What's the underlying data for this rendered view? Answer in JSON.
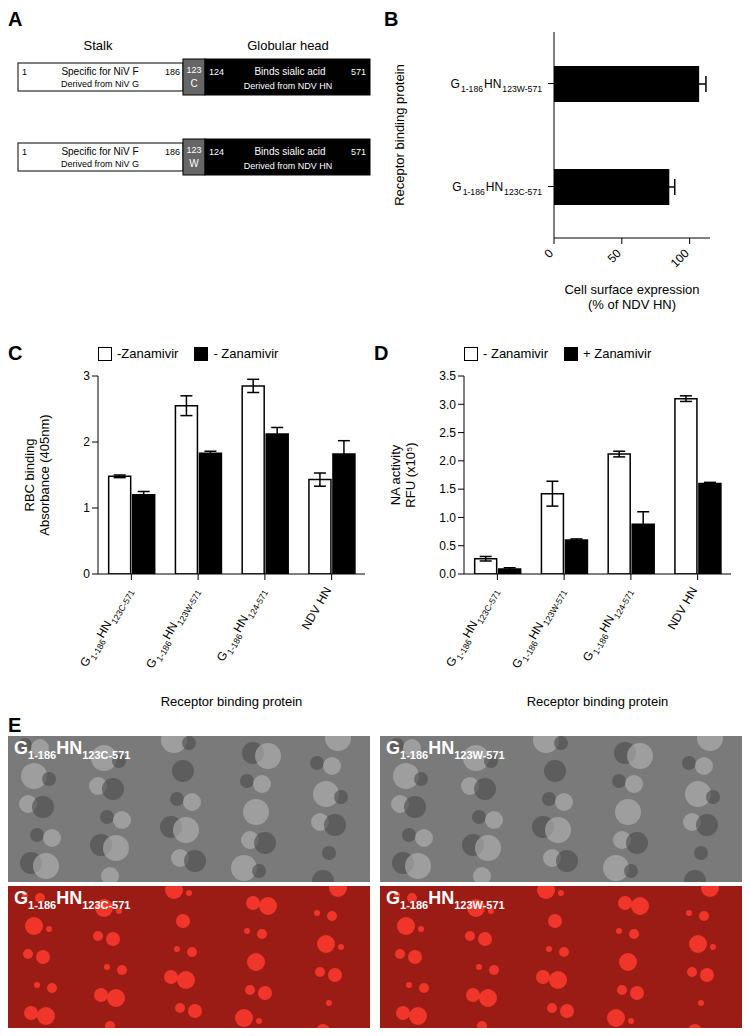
{
  "diagram": {
    "panel": "A",
    "headers": [
      "Stalk",
      "Globular head"
    ],
    "constructs": [
      {
        "stalk_start": "1",
        "stalk_text": "Specific for NiV F",
        "stalk_end": "186",
        "linker_number": "123",
        "linker_residue": "C",
        "head_start": "124",
        "head_text": "Binds sialic acid",
        "head_end": "571",
        "stalk_source": "Derived from NiV G",
        "head_source": "Derived from NDV HN"
      },
      {
        "stalk_start": "1",
        "stalk_text": "Specific for NiV F",
        "stalk_end": "186",
        "linker_number": "123",
        "linker_residue": "W",
        "head_start": "124",
        "head_text": "Binds sialic acid",
        "head_end": "571",
        "stalk_source": "Derived from NiV G",
        "head_source": "Derived from NDV HN"
      }
    ]
  },
  "chart_data": [
    {
      "panel": "B",
      "type": "bar",
      "orientation": "horizontal",
      "categories": [
        "G 1-186 HN 123W-571",
        "G 1-186 HN 123C-571"
      ],
      "values": [
        107,
        85
      ],
      "errors": [
        5,
        4
      ],
      "color": "#000000",
      "xlim": [
        0,
        115
      ],
      "xticks": [
        0,
        50,
        100
      ],
      "x_label": [
        "Cell surface expression",
        "(% of NDV HN)"
      ],
      "y_label": "Receptor binding protein"
    },
    {
      "panel": "C",
      "type": "bar",
      "categories": [
        "G 1-186 HN 123C-571",
        "G 1-186 HN 123W-571",
        "G 1-186 HN 124-571",
        "NDV HN"
      ],
      "series": [
        {
          "name": "-Zanamivir",
          "color": "#ffffff",
          "values": [
            1.48,
            2.55,
            2.85,
            1.43
          ],
          "errors": [
            0.02,
            0.15,
            0.1,
            0.1
          ]
        },
        {
          "name": "- Zanamivir",
          "color": "#000000",
          "values": [
            1.2,
            1.83,
            2.12,
            1.82
          ],
          "errors": [
            0.05,
            0.03,
            0.1,
            0.2
          ]
        }
      ],
      "ylim": [
        0,
        3
      ],
      "yticks": [
        0,
        1,
        2,
        3
      ],
      "y_label": [
        "RBC binding",
        "Absorbance (405nm)"
      ],
      "x_label": "Receptor binding protein",
      "legend": "top-left"
    },
    {
      "panel": "D",
      "type": "bar",
      "categories": [
        "G 1-186 HN 123C-571",
        "G 1-186 HN 123W-571",
        "G 1-186 HN 124-571",
        "NDV HN"
      ],
      "series": [
        {
          "name": "- Zanamivir",
          "color": "#ffffff",
          "values": [
            0.27,
            1.42,
            2.12,
            3.1
          ],
          "errors": [
            0.04,
            0.22,
            0.05,
            0.05
          ]
        },
        {
          "name": "+ Zanamivir",
          "color": "#000000",
          "values": [
            0.09,
            0.6,
            0.88,
            1.6
          ],
          "errors": [
            0.02,
            0.02,
            0.22,
            0.02
          ]
        }
      ],
      "ylim": [
        0,
        3.5
      ],
      "yticks": [
        {
          "value": 0,
          "label": "0.0"
        },
        {
          "value": 0.5,
          "label": "0.5"
        },
        {
          "value": 1,
          "label": "1.0"
        },
        {
          "value": 1.5,
          "label": "1.5"
        },
        {
          "value": 2,
          "label": "2.0"
        },
        {
          "value": 2.5,
          "label": "2.5"
        },
        {
          "value": 3,
          "label": "3.0"
        },
        {
          "value": 3.5,
          "label": "3.5"
        }
      ],
      "y_label": [
        "NA activity",
        "RFU (x10⁵)"
      ],
      "x_label": "Receptor binding protein",
      "legend": "top-left"
    }
  ],
  "images": {
    "panel": "E",
    "tiles": [
      "G 1-186 HN 123C-571",
      "G 1-186 HN 123W-571",
      "G 1-186 HN 123C-571",
      "G 1-186 HN 123W-571"
    ]
  }
}
